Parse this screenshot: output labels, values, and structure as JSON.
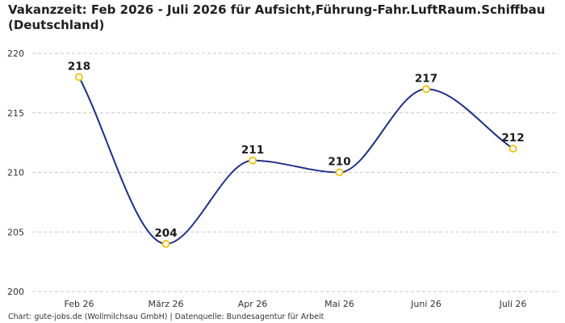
{
  "title": "Vakanzzeit: Feb 2026 - Juli 2026 für Aufsicht,Führung-Fahr.LuftRaum.Schiffbau (Deutschland)",
  "footer": "Chart: gute-jobs.de (Wollmilchsau GmbH) | Datenquelle: Bundesagentur für Arbeit",
  "chart_data": {
    "type": "line",
    "title": "Vakanzzeit: Feb 2026 - Juli 2026 für Aufsicht,Führung-Fahr.LuftRaum.Schiffbau (Deutschland)",
    "categories": [
      "Feb 26",
      "März 26",
      "Apr 26",
      "Mai 26",
      "Juni 26",
      "Juli 26"
    ],
    "series": [
      {
        "values": [
          218,
          204,
          211,
          210,
          217,
          212
        ]
      }
    ],
    "ylim": [
      200,
      220
    ],
    "yticks": [
      200,
      205,
      210,
      215,
      220
    ],
    "xlabel": "",
    "ylabel": "",
    "grid": true,
    "line_color": "#1f2f8a",
    "marker_color": "#f2c200"
  }
}
